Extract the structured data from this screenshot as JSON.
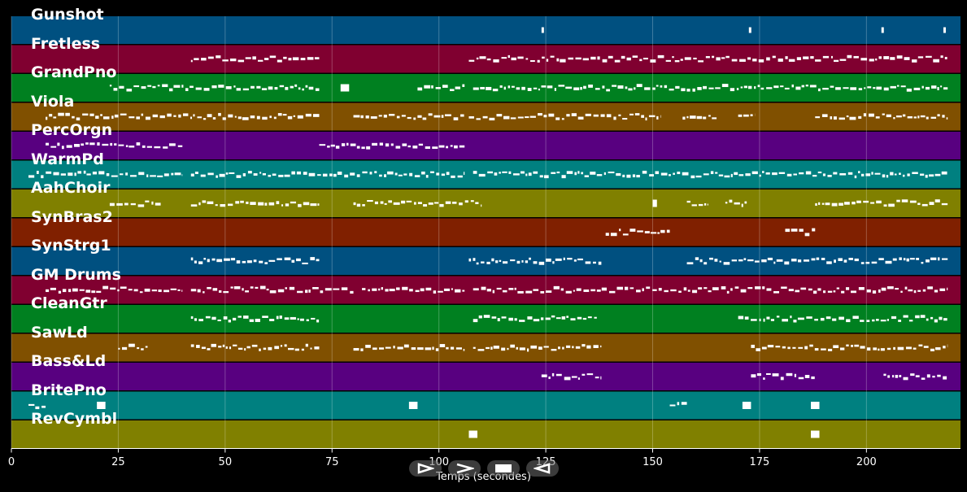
{
  "tracks": [
    {
      "name": "Gunshot",
      "color": "#005080"
    },
    {
      "name": "Fretless",
      "color": "#800030"
    },
    {
      "name": "GrandPno",
      "color": "#008020"
    },
    {
      "name": "Viola",
      "color": "#805000"
    },
    {
      "name": "PercOrgn",
      "color": "#580080"
    },
    {
      "name": "WarmPd",
      "color": "#008080"
    },
    {
      "name": "AahChoir",
      "color": "#808000"
    },
    {
      "name": "SynBras2",
      "color": "#802000"
    },
    {
      "name": "SynStrg1",
      "color": "#005080"
    },
    {
      "name": "GM Drums",
      "color": "#800030"
    },
    {
      "name": "CleanGtr",
      "color": "#008020"
    },
    {
      "name": "SawLd",
      "color": "#805000"
    },
    {
      "name": "Bass&Ld",
      "color": "#580080"
    },
    {
      "name": "BritePno",
      "color": "#008080"
    },
    {
      "name": "RevCymbl",
      "color": "#808000"
    }
  ],
  "x_axis": {
    "title": "Temps (secondes)",
    "ticks": [
      "0",
      "25",
      "50",
      "75",
      "100",
      "125",
      "150",
      "175",
      "200"
    ],
    "tick_values": [
      0,
      25,
      50,
      75,
      100,
      125,
      150,
      175,
      200
    ],
    "range": [
      0,
      222
    ]
  },
  "controls": [
    {
      "name": "play-reverse-icon",
      "glyph": "reverse"
    },
    {
      "name": "forward-icon",
      "glyph": "forward"
    },
    {
      "name": "stop-icon",
      "glyph": "stop"
    },
    {
      "name": "back-icon",
      "glyph": "back"
    }
  ],
  "notes": {
    "Gunshot": [
      [
        124,
        124.3
      ],
      [
        172.5,
        172.8
      ],
      [
        203.5,
        203.8
      ],
      [
        218,
        218.3
      ]
    ],
    "Fretless": [
      [
        42,
        72
      ],
      [
        107,
        219
      ]
    ],
    "GrandPno": [
      [
        23,
        72
      ],
      [
        77,
        79
      ],
      [
        95,
        106
      ],
      [
        108,
        219
      ]
    ],
    "Viola": [
      [
        8,
        72
      ],
      [
        80,
        106
      ],
      [
        107,
        152
      ],
      [
        157,
        165
      ],
      [
        170,
        174
      ],
      [
        188,
        219
      ]
    ],
    "PercOrgn": [
      [
        8,
        40
      ],
      [
        72,
        106
      ]
    ],
    "WarmPd": [
      [
        4,
        40
      ],
      [
        42,
        106
      ],
      [
        108,
        219
      ]
    ],
    "AahChoir": [
      [
        23,
        35
      ],
      [
        42,
        72
      ],
      [
        80,
        110
      ],
      [
        150,
        151
      ],
      [
        158,
        163
      ],
      [
        167,
        172
      ],
      [
        188,
        219
      ]
    ],
    "SynBras2": [
      [
        139,
        154
      ],
      [
        181,
        188
      ]
    ],
    "SynStrg1": [
      [
        42,
        72
      ],
      [
        107,
        138
      ],
      [
        158,
        219
      ]
    ],
    "GM Drums": [
      [
        8,
        40
      ],
      [
        42,
        80
      ],
      [
        82,
        106
      ],
      [
        108,
        219
      ]
    ],
    "CleanGtr": [
      [
        42,
        72
      ],
      [
        108,
        137
      ],
      [
        170,
        219
      ]
    ],
    "SawLd": [
      [
        25,
        32
      ],
      [
        42,
        72
      ],
      [
        80,
        106
      ],
      [
        108,
        138
      ],
      [
        173,
        219
      ]
    ],
    "Bass&Ld": [
      [
        124,
        138
      ],
      [
        173,
        188
      ],
      [
        204,
        219
      ]
    ],
    "BritePno": [
      [
        4,
        8
      ],
      [
        20,
        22
      ],
      [
        93,
        95
      ],
      [
        154,
        158
      ],
      [
        171,
        173
      ],
      [
        187,
        189
      ]
    ],
    "RevCymbl": [
      [
        107,
        109
      ],
      [
        187,
        189
      ]
    ]
  }
}
